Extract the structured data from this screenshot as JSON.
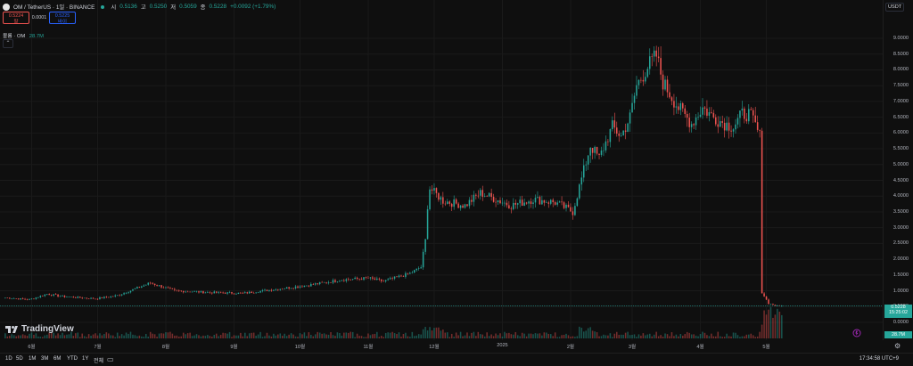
{
  "header": {
    "symbol": "OM / TetherUS · 1일 · BINANCE",
    "open_label": "시",
    "open": "0.5136",
    "high_label": "고",
    "high": "0.5250",
    "low_label": "저",
    "low": "0.5059",
    "close_label": "종",
    "close": "0.5228",
    "change": "+0.0092 (+1.79%)",
    "sell_price": "0.5224",
    "sell_label": "팔",
    "spread": "0.0001",
    "buy_price": "0.5225",
    "buy_label": "바이"
  },
  "volume_legend": {
    "label": "볼륨 · OM",
    "value": "28.7M"
  },
  "currency": "USDT",
  "last_price": {
    "value": "0.5228",
    "countdown": "15:25:02"
  },
  "volume_badge": "28.7M",
  "logo_text": "TradingView",
  "bottom_bar": {
    "ranges": [
      "1D",
      "5D",
      "1M",
      "3M",
      "6M",
      "YTD",
      "1Y",
      "전체"
    ],
    "time": "17:34:58 UTC+9"
  },
  "colors": {
    "up": "#26a69a",
    "down": "#ef5350",
    "background": "#0f0f0f"
  },
  "chart_data": {
    "type": "candlestick",
    "title": "OM / TetherUS · 1일 · BINANCE",
    "xlabel": "",
    "ylabel": "",
    "ylim": [
      -0.2,
      9.5
    ],
    "y_ticks": [
      "9.0000",
      "8.5000",
      "8.0000",
      "7.5000",
      "7.0000",
      "6.5000",
      "6.0000",
      "5.5000",
      "5.0000",
      "4.5000",
      "4.0000",
      "3.5000",
      "3.0000",
      "2.5000",
      "2.0000",
      "1.5000",
      "1.0000",
      "0.5000",
      "0.0000"
    ],
    "x_ticks": [
      "6월",
      "7월",
      "8월",
      "9월",
      "10월",
      "11월",
      "12월",
      "2025",
      "2월",
      "3월",
      "4월",
      "5월"
    ],
    "grid": true,
    "series": [
      {
        "name": "볼륨 · OM",
        "type": "volume"
      }
    ],
    "anchors_close": [
      [
        "2024-05-20",
        0.78
      ],
      [
        "2024-05-31",
        0.72
      ],
      [
        "2024-06-08",
        0.9
      ],
      [
        "2024-06-15",
        0.82
      ],
      [
        "2024-06-30",
        0.75
      ],
      [
        "2024-07-10",
        0.85
      ],
      [
        "2024-07-25",
        1.25
      ],
      [
        "2024-08-05",
        1.0
      ],
      [
        "2024-08-20",
        0.95
      ],
      [
        "2024-09-05",
        0.92
      ],
      [
        "2024-09-20",
        1.05
      ],
      [
        "2024-10-05",
        1.18
      ],
      [
        "2024-10-20",
        1.35
      ],
      [
        "2024-11-01",
        1.4
      ],
      [
        "2024-11-08",
        1.3
      ],
      [
        "2024-11-20",
        1.55
      ],
      [
        "2024-11-25",
        1.75
      ],
      [
        "2024-11-27",
        2.6
      ],
      [
        "2024-11-28",
        3.7
      ],
      [
        "2024-11-29",
        4.25
      ],
      [
        "2024-12-05",
        3.85
      ],
      [
        "2024-12-15",
        3.7
      ],
      [
        "2024-12-22",
        4.1
      ],
      [
        "2025-01-05",
        3.7
      ],
      [
        "2025-01-15",
        3.9
      ],
      [
        "2025-01-25",
        3.8
      ],
      [
        "2025-02-02",
        3.5
      ],
      [
        "2025-02-05",
        4.3
      ],
      [
        "2025-02-10",
        5.6
      ],
      [
        "2025-02-14",
        5.2
      ],
      [
        "2025-02-20",
        6.2
      ],
      [
        "2025-02-24",
        5.9
      ],
      [
        "2025-02-28",
        6.5
      ],
      [
        "2025-03-03",
        7.5
      ],
      [
        "2025-03-08",
        8.1
      ],
      [
        "2025-03-12",
        8.45
      ],
      [
        "2025-03-15",
        7.6
      ],
      [
        "2025-03-22",
        6.8
      ],
      [
        "2025-03-28",
        6.3
      ],
      [
        "2025-04-02",
        6.8
      ],
      [
        "2025-04-07",
        6.5
      ],
      [
        "2025-04-12",
        6.3
      ],
      [
        "2025-04-16",
        6.2
      ],
      [
        "2025-04-20",
        6.6
      ],
      [
        "2025-04-23",
        6.6
      ],
      [
        "2025-04-25",
        6.4
      ],
      [
        "2025-04-28",
        5.9
      ],
      [
        "2025-04-29",
        0.95
      ],
      [
        "2025-05-02",
        0.6
      ],
      [
        "2025-05-06",
        0.52
      ],
      [
        "2025-05-08",
        0.5228
      ]
    ],
    "last": {
      "open": 0.5136,
      "high": 0.525,
      "low": 0.5059,
      "close": 0.5228
    }
  }
}
